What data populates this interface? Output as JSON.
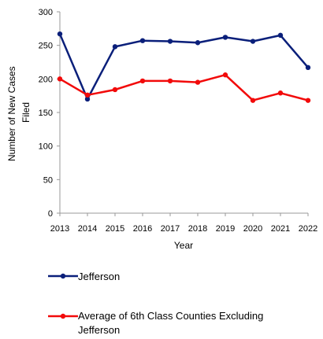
{
  "chart_data": {
    "type": "line",
    "title": "",
    "xlabel": "Year",
    "ylabel_lines": [
      "Number of New Cases",
      "Filed"
    ],
    "x": [
      2013,
      2014,
      2015,
      2016,
      2017,
      2018,
      2019,
      2020,
      2021,
      2022
    ],
    "ylim": [
      0,
      300
    ],
    "yticks": [
      0,
      50,
      100,
      150,
      200,
      250,
      300
    ],
    "grid": false,
    "legend_position": "bottom",
    "series": [
      {
        "name": "Jefferson",
        "color": "#0a1f7a",
        "marker": "circle",
        "values": [
          267,
          170,
          248,
          257,
          256,
          254,
          262,
          256,
          265,
          217
        ]
      },
      {
        "name_lines": [
          "Average of 6th Class Counties Excluding",
          "Jefferson"
        ],
        "color": "#f20a0a",
        "marker": "circle",
        "values": [
          200,
          176,
          184,
          197,
          197,
          195,
          206,
          168,
          179,
          168
        ]
      }
    ]
  }
}
